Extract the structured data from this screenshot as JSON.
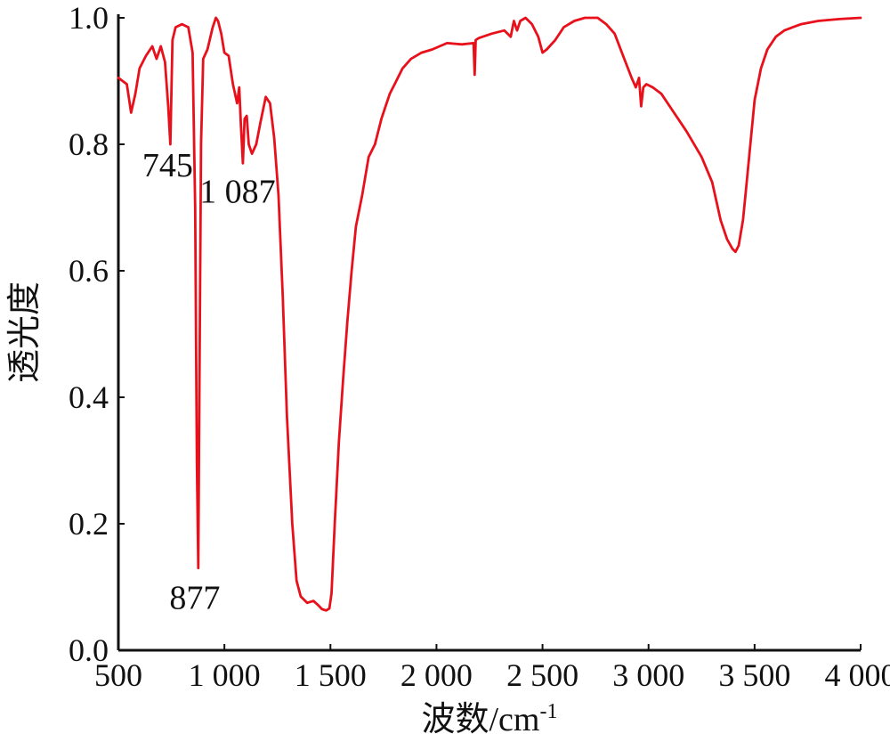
{
  "chart_data": {
    "type": "line",
    "title": "",
    "xlabel": "波数/cm",
    "xlabel_superscript": "-1",
    "ylabel": "透光度",
    "xlim": [
      500,
      4000
    ],
    "ylim": [
      0.0,
      1.0
    ],
    "grid": false,
    "legend": "none",
    "x_ticks": [
      500,
      1000,
      1500,
      2000,
      2500,
      3000,
      3500,
      4000
    ],
    "x_tick_labels": [
      "500",
      "1 000",
      "1 500",
      "2 000",
      "2 500",
      "3 000",
      "3 500",
      "4 000"
    ],
    "y_ticks": [
      0.0,
      0.2,
      0.4,
      0.6,
      0.8,
      1.0
    ],
    "y_tick_labels": [
      "0.0",
      "0.2",
      "0.4",
      "0.6",
      "0.8",
      "1.0"
    ],
    "series": [
      {
        "color": "#e8101a",
        "x": [
          500,
          540,
          560,
          580,
          600,
          630,
          660,
          680,
          700,
          720,
          735,
          745,
          755,
          770,
          800,
          830,
          850,
          862,
          870,
          877,
          882,
          890,
          900,
          920,
          945,
          960,
          970,
          985,
          1000,
          1020,
          1040,
          1060,
          1070,
          1078,
          1087,
          1095,
          1105,
          1115,
          1130,
          1150,
          1170,
          1195,
          1215,
          1235,
          1255,
          1275,
          1295,
          1320,
          1340,
          1360,
          1390,
          1420,
          1440,
          1460,
          1480,
          1495,
          1505,
          1520,
          1540,
          1560,
          1580,
          1600,
          1620,
          1650,
          1680,
          1710,
          1740,
          1760,
          1780,
          1810,
          1840,
          1880,
          1930,
          1980,
          2050,
          2120,
          2175,
          2180,
          2185,
          2200,
          2260,
          2320,
          2350,
          2365,
          2380,
          2395,
          2420,
          2450,
          2480,
          2500,
          2520,
          2560,
          2600,
          2650,
          2700,
          2760,
          2800,
          2840,
          2880,
          2920,
          2940,
          2955,
          2965,
          2975,
          2990,
          3020,
          3060,
          3120,
          3180,
          3250,
          3300,
          3340,
          3370,
          3395,
          3410,
          3425,
          3445,
          3460,
          3480,
          3500,
          3530,
          3560,
          3600,
          3640,
          3680,
          3720,
          3800,
          3900,
          4000
        ],
        "y": [
          0.905,
          0.895,
          0.85,
          0.88,
          0.92,
          0.94,
          0.955,
          0.935,
          0.955,
          0.93,
          0.86,
          0.8,
          0.965,
          0.985,
          0.99,
          0.985,
          0.945,
          0.7,
          0.3,
          0.13,
          0.4,
          0.8,
          0.935,
          0.95,
          0.985,
          1.0,
          0.995,
          0.975,
          0.945,
          0.94,
          0.895,
          0.865,
          0.89,
          0.83,
          0.77,
          0.84,
          0.845,
          0.8,
          0.785,
          0.8,
          0.835,
          0.875,
          0.865,
          0.81,
          0.72,
          0.56,
          0.37,
          0.2,
          0.11,
          0.085,
          0.075,
          0.078,
          0.072,
          0.065,
          0.063,
          0.066,
          0.09,
          0.2,
          0.33,
          0.43,
          0.52,
          0.6,
          0.67,
          0.72,
          0.78,
          0.8,
          0.84,
          0.86,
          0.88,
          0.9,
          0.92,
          0.935,
          0.945,
          0.95,
          0.96,
          0.958,
          0.96,
          0.91,
          0.965,
          0.968,
          0.975,
          0.98,
          0.97,
          0.995,
          0.98,
          0.995,
          1.0,
          0.99,
          0.97,
          0.945,
          0.95,
          0.965,
          0.985,
          0.995,
          1.0,
          1.0,
          0.99,
          0.975,
          0.94,
          0.905,
          0.89,
          0.905,
          0.86,
          0.89,
          0.895,
          0.89,
          0.88,
          0.85,
          0.82,
          0.78,
          0.74,
          0.68,
          0.65,
          0.635,
          0.63,
          0.64,
          0.68,
          0.73,
          0.8,
          0.87,
          0.92,
          0.95,
          0.97,
          0.98,
          0.985,
          0.99,
          0.995,
          0.998,
          1.0
        ]
      }
    ],
    "annotations": [
      {
        "text": "745",
        "x": 745,
        "y": 0.8
      },
      {
        "text": "877",
        "x": 877,
        "y": 0.13
      },
      {
        "text": "1 087",
        "x": 1087,
        "y": 0.77
      }
    ]
  }
}
